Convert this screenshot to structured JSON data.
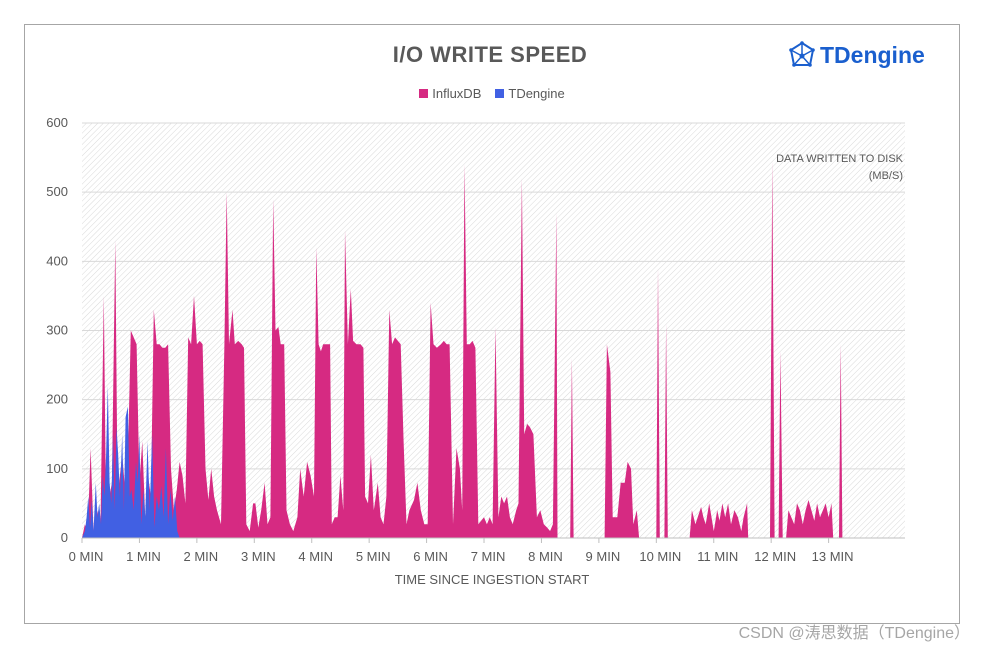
{
  "brand": {
    "name": "TDengine",
    "icon": "tdengine-logo-icon",
    "color": "#1a5fce"
  },
  "watermark": "CSDN @涛思数据（TDengine）",
  "chart_data": {
    "type": "area",
    "title": "I/O WRITE SPEED",
    "xlabel": "TIME SINCE INGESTION START",
    "ylabel": "",
    "annotation": [
      "DATA WRITTEN TO DISK",
      "(MB/S)"
    ],
    "xlim": [
      0,
      14.33
    ],
    "ylim": [
      0,
      600
    ],
    "x_ticks": [
      0,
      1,
      2,
      3,
      4,
      5,
      6,
      7,
      8,
      9,
      10,
      11,
      12,
      13
    ],
    "x_tick_labels": [
      "0 MIN",
      "1 MIN",
      "2 MIN",
      "3 MIN",
      "4 MIN",
      "5 MIN",
      "6 MIN",
      "7 MIN",
      "8 MIN",
      "9 MIN",
      "10 MIN",
      "11 MIN",
      "12 MIN",
      "13 MIN"
    ],
    "y_ticks": [
      0,
      100,
      200,
      300,
      400,
      500,
      600
    ],
    "grid": true,
    "legend_position": "top",
    "series": [
      {
        "name": "InfluxDB",
        "color": "#d62a82",
        "points": [
          [
            0.0,
            0
          ],
          [
            0.05,
            20
          ],
          [
            0.1,
            5
          ],
          [
            0.15,
            130
          ],
          [
            0.2,
            10
          ],
          [
            0.28,
            40
          ],
          [
            0.32,
            10
          ],
          [
            0.38,
            350
          ],
          [
            0.42,
            30
          ],
          [
            0.48,
            60
          ],
          [
            0.52,
            80
          ],
          [
            0.58,
            430
          ],
          [
            0.62,
            60
          ],
          [
            0.7,
            120
          ],
          [
            0.78,
            40
          ],
          [
            0.85,
            300
          ],
          [
            0.9,
            290
          ],
          [
            0.95,
            280
          ],
          [
            1.0,
            80
          ],
          [
            1.05,
            140
          ],
          [
            1.1,
            30
          ],
          [
            1.15,
            90
          ],
          [
            1.2,
            60
          ],
          [
            1.25,
            330
          ],
          [
            1.3,
            280
          ],
          [
            1.35,
            280
          ],
          [
            1.4,
            275
          ],
          [
            1.45,
            275
          ],
          [
            1.5,
            280
          ],
          [
            1.55,
            100
          ],
          [
            1.6,
            40
          ],
          [
            1.65,
            70
          ],
          [
            1.7,
            110
          ],
          [
            1.75,
            90
          ],
          [
            1.8,
            50
          ],
          [
            1.85,
            290
          ],
          [
            1.9,
            280
          ],
          [
            1.95,
            350
          ],
          [
            2.0,
            280
          ],
          [
            2.05,
            285
          ],
          [
            2.1,
            280
          ],
          [
            2.15,
            100
          ],
          [
            2.2,
            55
          ],
          [
            2.25,
            100
          ],
          [
            2.3,
            60
          ],
          [
            2.35,
            40
          ],
          [
            2.42,
            20
          ],
          [
            2.48,
            280
          ],
          [
            2.52,
            500
          ],
          [
            2.56,
            280
          ],
          [
            2.62,
            330
          ],
          [
            2.66,
            280
          ],
          [
            2.72,
            285
          ],
          [
            2.78,
            280
          ],
          [
            2.82,
            275
          ],
          [
            2.86,
            20
          ],
          [
            2.92,
            10
          ],
          [
            2.98,
            50
          ],
          [
            3.02,
            50
          ],
          [
            3.07,
            15
          ],
          [
            3.12,
            40
          ],
          [
            3.18,
            80
          ],
          [
            3.23,
            20
          ],
          [
            3.28,
            30
          ],
          [
            3.33,
            490
          ],
          [
            3.37,
            300
          ],
          [
            3.42,
            305
          ],
          [
            3.46,
            280
          ],
          [
            3.52,
            280
          ],
          [
            3.56,
            40
          ],
          [
            3.62,
            20
          ],
          [
            3.68,
            10
          ],
          [
            3.75,
            30
          ],
          [
            3.8,
            100
          ],
          [
            3.86,
            60
          ],
          [
            3.92,
            110
          ],
          [
            3.98,
            90
          ],
          [
            4.04,
            60
          ],
          [
            4.08,
            420
          ],
          [
            4.12,
            280
          ],
          [
            4.16,
            270
          ],
          [
            4.2,
            280
          ],
          [
            4.26,
            280
          ],
          [
            4.32,
            280
          ],
          [
            4.35,
            20
          ],
          [
            4.4,
            30
          ],
          [
            4.45,
            30
          ],
          [
            4.5,
            90
          ],
          [
            4.55,
            40
          ],
          [
            4.58,
            445
          ],
          [
            4.63,
            280
          ],
          [
            4.68,
            360
          ],
          [
            4.72,
            285
          ],
          [
            4.78,
            280
          ],
          [
            4.85,
            280
          ],
          [
            4.9,
            275
          ],
          [
            4.93,
            60
          ],
          [
            4.98,
            50
          ],
          [
            5.03,
            120
          ],
          [
            5.08,
            40
          ],
          [
            5.15,
            80
          ],
          [
            5.2,
            30
          ],
          [
            5.25,
            20
          ],
          [
            5.3,
            60
          ],
          [
            5.35,
            330
          ],
          [
            5.4,
            280
          ],
          [
            5.45,
            290
          ],
          [
            5.5,
            285
          ],
          [
            5.55,
            280
          ],
          [
            5.6,
            140
          ],
          [
            5.65,
            20
          ],
          [
            5.7,
            40
          ],
          [
            5.78,
            55
          ],
          [
            5.84,
            80
          ],
          [
            5.9,
            40
          ],
          [
            5.96,
            20
          ],
          [
            6.02,
            20
          ],
          [
            6.07,
            340
          ],
          [
            6.12,
            280
          ],
          [
            6.18,
            275
          ],
          [
            6.25,
            280
          ],
          [
            6.3,
            285
          ],
          [
            6.35,
            280
          ],
          [
            6.4,
            280
          ],
          [
            6.46,
            20
          ],
          [
            6.52,
            130
          ],
          [
            6.58,
            100
          ],
          [
            6.62,
            40
          ],
          [
            6.66,
            540
          ],
          [
            6.7,
            280
          ],
          [
            6.75,
            280
          ],
          [
            6.8,
            285
          ],
          [
            6.85,
            275
          ],
          [
            6.9,
            20
          ],
          [
            6.95,
            25
          ],
          [
            7.0,
            30
          ],
          [
            7.05,
            20
          ],
          [
            7.1,
            30
          ],
          [
            7.15,
            20
          ],
          [
            7.2,
            305
          ],
          [
            7.25,
            30
          ],
          [
            7.3,
            60
          ],
          [
            7.35,
            50
          ],
          [
            7.4,
            60
          ],
          [
            7.45,
            30
          ],
          [
            7.5,
            20
          ],
          [
            7.56,
            40
          ],
          [
            7.6,
            50
          ],
          [
            7.66,
            520
          ],
          [
            7.7,
            150
          ],
          [
            7.75,
            165
          ],
          [
            7.8,
            160
          ],
          [
            7.86,
            150
          ],
          [
            7.92,
            30
          ],
          [
            7.98,
            40
          ],
          [
            8.04,
            20
          ],
          [
            8.1,
            15
          ],
          [
            8.15,
            10
          ],
          [
            8.2,
            20
          ],
          [
            8.26,
            470
          ],
          [
            8.28,
            0
          ],
          [
            8.5,
            0
          ],
          [
            8.53,
            260
          ],
          [
            8.56,
            0
          ],
          [
            9.1,
            0
          ],
          [
            9.14,
            280
          ],
          [
            9.2,
            240
          ],
          [
            9.24,
            30
          ],
          [
            9.32,
            30
          ],
          [
            9.38,
            80
          ],
          [
            9.45,
            80
          ],
          [
            9.5,
            110
          ],
          [
            9.56,
            100
          ],
          [
            9.6,
            20
          ],
          [
            9.66,
            40
          ],
          [
            9.7,
            0
          ],
          [
            10.0,
            0
          ],
          [
            10.03,
            390
          ],
          [
            10.06,
            0
          ],
          [
            10.14,
            0
          ],
          [
            10.17,
            310
          ],
          [
            10.2,
            0
          ],
          [
            10.58,
            0
          ],
          [
            10.62,
            40
          ],
          [
            10.68,
            20
          ],
          [
            10.72,
            30
          ],
          [
            10.78,
            45
          ],
          [
            10.82,
            30
          ],
          [
            10.86,
            20
          ],
          [
            10.92,
            50
          ],
          [
            10.96,
            30
          ],
          [
            11.0,
            10
          ],
          [
            11.06,
            40
          ],
          [
            11.1,
            25
          ],
          [
            11.15,
            50
          ],
          [
            11.2,
            30
          ],
          [
            11.25,
            50
          ],
          [
            11.3,
            20
          ],
          [
            11.36,
            40
          ],
          [
            11.42,
            30
          ],
          [
            11.48,
            10
          ],
          [
            11.52,
            30
          ],
          [
            11.58,
            50
          ],
          [
            11.6,
            0
          ],
          [
            11.98,
            0
          ],
          [
            12.02,
            545
          ],
          [
            12.06,
            0
          ],
          [
            12.13,
            0
          ],
          [
            12.16,
            270
          ],
          [
            12.2,
            0
          ],
          [
            12.26,
            0
          ],
          [
            12.3,
            40
          ],
          [
            12.35,
            30
          ],
          [
            12.4,
            20
          ],
          [
            12.45,
            50
          ],
          [
            12.5,
            40
          ],
          [
            12.55,
            20
          ],
          [
            12.6,
            40
          ],
          [
            12.65,
            55
          ],
          [
            12.7,
            40
          ],
          [
            12.75,
            25
          ],
          [
            12.8,
            50
          ],
          [
            12.85,
            30
          ],
          [
            12.9,
            40
          ],
          [
            12.95,
            50
          ],
          [
            13.0,
            30
          ],
          [
            13.05,
            50
          ],
          [
            13.08,
            0
          ],
          [
            13.18,
            0
          ],
          [
            13.21,
            280
          ],
          [
            13.24,
            0
          ],
          [
            14.33,
            0
          ]
        ]
      },
      {
        "name": "TDengine",
        "color": "#4160e3",
        "points": [
          [
            0.0,
            0
          ],
          [
            0.05,
            10
          ],
          [
            0.08,
            30
          ],
          [
            0.11,
            60
          ],
          [
            0.14,
            15
          ],
          [
            0.17,
            55
          ],
          [
            0.2,
            10
          ],
          [
            0.24,
            80
          ],
          [
            0.27,
            30
          ],
          [
            0.3,
            50
          ],
          [
            0.33,
            20
          ],
          [
            0.36,
            90
          ],
          [
            0.39,
            60
          ],
          [
            0.42,
            120
          ],
          [
            0.45,
            220
          ],
          [
            0.48,
            80
          ],
          [
            0.51,
            50
          ],
          [
            0.54,
            150
          ],
          [
            0.57,
            40
          ],
          [
            0.6,
            160
          ],
          [
            0.63,
            120
          ],
          [
            0.66,
            60
          ],
          [
            0.7,
            150
          ],
          [
            0.73,
            40
          ],
          [
            0.76,
            175
          ],
          [
            0.8,
            190
          ],
          [
            0.83,
            60
          ],
          [
            0.86,
            70
          ],
          [
            0.9,
            40
          ],
          [
            0.94,
            110
          ],
          [
            0.97,
            80
          ],
          [
            1.0,
            150
          ],
          [
            1.03,
            20
          ],
          [
            1.07,
            70
          ],
          [
            1.1,
            30
          ],
          [
            1.14,
            140
          ],
          [
            1.18,
            40
          ],
          [
            1.22,
            150
          ],
          [
            1.26,
            15
          ],
          [
            1.3,
            60
          ],
          [
            1.34,
            40
          ],
          [
            1.38,
            75
          ],
          [
            1.42,
            30
          ],
          [
            1.46,
            130
          ],
          [
            1.5,
            20
          ],
          [
            1.54,
            70
          ],
          [
            1.58,
            25
          ],
          [
            1.62,
            60
          ],
          [
            1.66,
            10
          ],
          [
            1.7,
            0
          ]
        ]
      }
    ]
  }
}
